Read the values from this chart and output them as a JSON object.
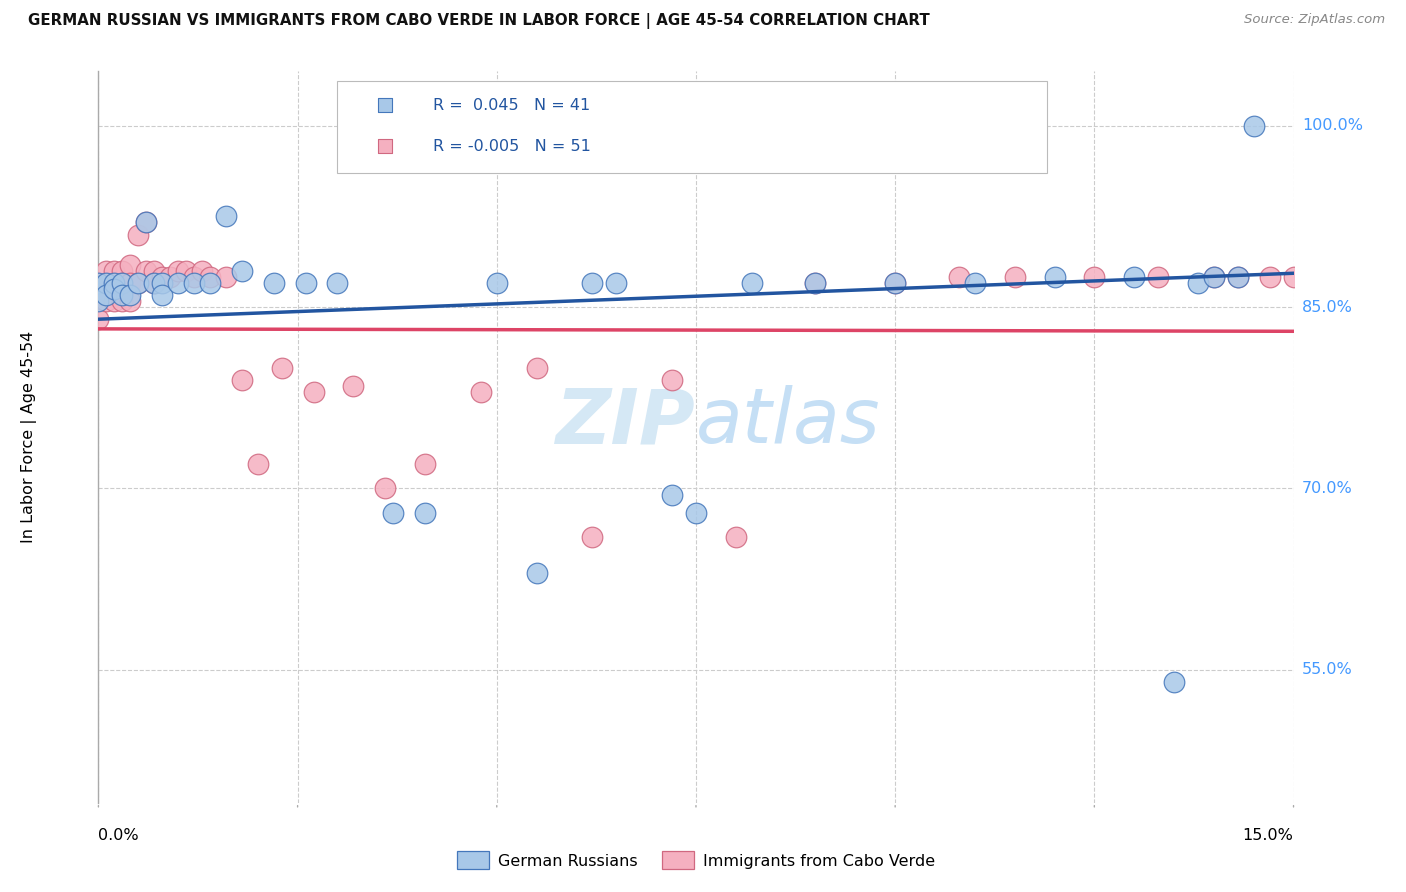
{
  "title": "GERMAN RUSSIAN VS IMMIGRANTS FROM CABO VERDE IN LABOR FORCE | AGE 45-54 CORRELATION CHART",
  "source": "Source: ZipAtlas.com",
  "ylabel": "In Labor Force | Age 45-54",
  "ytick_vals": [
    0.55,
    0.7,
    0.85,
    1.0
  ],
  "ytick_labels": [
    "55.0%",
    "70.0%",
    "85.0%",
    "100.0%"
  ],
  "xlim": [
    0.0,
    0.15
  ],
  "ylim": [
    0.44,
    1.045
  ],
  "legend_blue_r": "0.045",
  "legend_blue_n": "41",
  "legend_pink_r": "-0.005",
  "legend_pink_n": "51",
  "blue_fill": "#a8c8e8",
  "blue_edge": "#4477bb",
  "pink_fill": "#f5b0c0",
  "pink_edge": "#d06880",
  "blue_line": "#2255a0",
  "pink_line": "#dd4466",
  "watermark_color": "#d5e8f5",
  "blue_trend_x": [
    0.0,
    0.15
  ],
  "blue_trend_y": [
    0.84,
    0.878
  ],
  "pink_trend_x": [
    0.0,
    0.15
  ],
  "pink_trend_y": [
    0.832,
    0.83
  ],
  "blue_x": [
    0.0,
    0.0,
    0.001,
    0.001,
    0.002,
    0.002,
    0.003,
    0.003,
    0.004,
    0.005,
    0.006,
    0.007,
    0.008,
    0.008,
    0.01,
    0.012,
    0.014,
    0.016,
    0.018,
    0.022,
    0.026,
    0.03,
    0.037,
    0.041,
    0.05,
    0.055,
    0.062,
    0.065,
    0.072,
    0.075,
    0.082,
    0.09,
    0.1,
    0.11,
    0.12,
    0.13,
    0.135,
    0.138,
    0.14,
    0.143,
    0.145
  ],
  "blue_y": [
    0.87,
    0.855,
    0.87,
    0.86,
    0.87,
    0.865,
    0.87,
    0.86,
    0.86,
    0.87,
    0.92,
    0.87,
    0.87,
    0.86,
    0.87,
    0.87,
    0.87,
    0.925,
    0.88,
    0.87,
    0.87,
    0.87,
    0.68,
    0.68,
    0.87,
    0.63,
    0.87,
    0.87,
    0.695,
    0.68,
    0.87,
    0.87,
    0.87,
    0.87,
    0.875,
    0.875,
    0.54,
    0.87,
    0.875,
    0.875,
    1.0
  ],
  "pink_x": [
    0.0,
    0.0,
    0.0,
    0.001,
    0.001,
    0.001,
    0.002,
    0.002,
    0.002,
    0.003,
    0.003,
    0.003,
    0.004,
    0.004,
    0.004,
    0.005,
    0.005,
    0.006,
    0.006,
    0.007,
    0.007,
    0.008,
    0.009,
    0.01,
    0.011,
    0.012,
    0.013,
    0.014,
    0.016,
    0.018,
    0.02,
    0.023,
    0.027,
    0.032,
    0.036,
    0.041,
    0.048,
    0.055,
    0.062,
    0.072,
    0.08,
    0.09,
    0.1,
    0.108,
    0.115,
    0.125,
    0.133,
    0.14,
    0.143,
    0.147,
    0.15
  ],
  "pink_y": [
    0.87,
    0.86,
    0.84,
    0.88,
    0.87,
    0.855,
    0.88,
    0.87,
    0.855,
    0.88,
    0.87,
    0.855,
    0.885,
    0.87,
    0.855,
    0.91,
    0.87,
    0.92,
    0.88,
    0.88,
    0.87,
    0.875,
    0.875,
    0.88,
    0.88,
    0.875,
    0.88,
    0.875,
    0.875,
    0.79,
    0.72,
    0.8,
    0.78,
    0.785,
    0.7,
    0.72,
    0.78,
    0.8,
    0.66,
    0.79,
    0.66,
    0.87,
    0.87,
    0.875,
    0.875,
    0.875,
    0.875,
    0.875,
    0.875,
    0.875,
    0.875
  ]
}
